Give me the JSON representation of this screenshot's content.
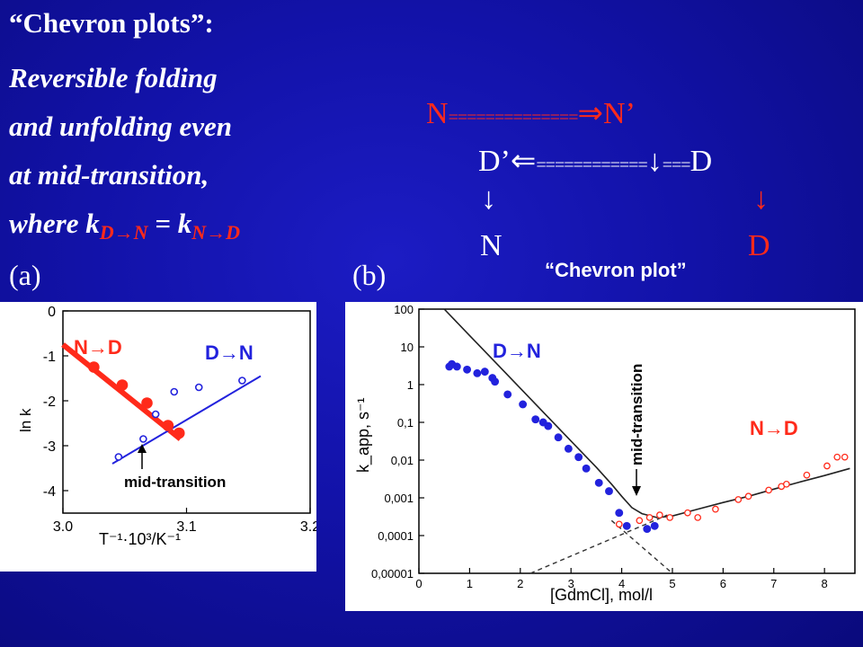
{
  "slide": {
    "title_lines": [
      "“Chevron plots”:",
      "Reversible folding",
      "and unfolding even",
      "at mid-transition,"
    ],
    "where": {
      "prefix": "where k",
      "sub1": "D",
      "arrow": "→",
      "sub1b": "N",
      "eq": " = k",
      "sub2": "N",
      "arrow2": "→",
      "sub2b": "D"
    },
    "scheme": {
      "row1_left": "N",
      "row1_bars": "==============",
      "row1_arrow": "⇒",
      "row1_right": "N’",
      "row2_left": "D’",
      "row2_arrow": "⇐",
      "row2_bars": "============",
      "row2_down": "↓",
      "row2_bars2": "===",
      "row2_right": "D",
      "down_left": "↓",
      "down_right": "↓",
      "bottom_left": "N",
      "bottom_right": "D"
    },
    "label_a": "(a)",
    "label_b": "(b)",
    "chevron_label": "“Chevron plot”"
  },
  "colors": {
    "bg": "#1212a8",
    "red": "#ff2a1a",
    "blue": "#2222dd"
  },
  "chart_data": [
    {
      "type": "scatter",
      "panel": "a",
      "xlabel": "T⁻¹·10³/K⁻¹",
      "ylabel": "ln k",
      "xlim": [
        3.0,
        3.2
      ],
      "ylim": [
        -4.5,
        0.0
      ],
      "xticks": [
        "3.0",
        "3.1",
        "3.2"
      ],
      "yticks": [
        "0",
        "-1",
        "-2",
        "-3",
        "-4"
      ],
      "series": [
        {
          "name": "N→D",
          "color": "#ff2a1a",
          "marker": "filled",
          "x": [
            3.025,
            3.048,
            3.068,
            3.085,
            3.094
          ],
          "y": [
            -1.25,
            -1.65,
            -2.05,
            -2.55,
            -2.72
          ],
          "fit": [
            [
              3.0,
              -0.75
            ],
            [
              3.095,
              -2.85
            ]
          ]
        },
        {
          "name": "D→N",
          "color": "#2222dd",
          "marker": "open",
          "x": [
            3.045,
            3.065,
            3.075,
            3.09,
            3.11,
            3.145
          ],
          "y": [
            -3.25,
            -2.85,
            -2.3,
            -1.8,
            -1.7,
            -1.55
          ],
          "fit": [
            [
              3.04,
              -3.4
            ],
            [
              3.16,
              -1.45
            ]
          ]
        }
      ],
      "annotations": [
        "mid-transition"
      ]
    },
    {
      "type": "scatter",
      "panel": "b",
      "xlabel": "[GdmCl], mol/l",
      "ylabel": "k_app, s⁻¹",
      "yscale": "log",
      "xlim": [
        0,
        8.6
      ],
      "ylim": [
        1e-05,
        100
      ],
      "xticks": [
        "0",
        "1",
        "2",
        "3",
        "4",
        "5",
        "6",
        "7",
        "8"
      ],
      "yticks": [
        "100",
        "10",
        "1",
        "0,1",
        "0,01",
        "0,001",
        "0,0001",
        "0,00001"
      ],
      "series": [
        {
          "name": "D→N",
          "color": "#2222dd",
          "marker": "filled",
          "x": [
            0.6,
            0.65,
            0.75,
            0.95,
            1.15,
            1.3,
            1.45,
            1.5,
            1.75,
            2.05,
            2.3,
            2.45,
            2.55,
            2.75,
            2.95,
            3.15,
            3.3,
            3.55,
            3.75,
            3.95,
            4.1,
            4.5,
            4.65
          ],
          "y": [
            3,
            3.5,
            3,
            2.5,
            2,
            2.2,
            1.5,
            1.2,
            0.55,
            0.3,
            0.12,
            0.1,
            0.08,
            0.04,
            0.02,
            0.012,
            0.006,
            0.0025,
            0.0015,
            0.0004,
            0.00018,
            0.00015,
            0.00018
          ]
        },
        {
          "name": "N→D",
          "color": "#ff2a1a",
          "marker": "open",
          "x": [
            3.95,
            4.35,
            4.55,
            4.75,
            4.95,
            5.3,
            5.5,
            5.85,
            6.3,
            6.5,
            6.9,
            7.15,
            7.25,
            7.65,
            8.05,
            8.25,
            8.4
          ],
          "y": [
            0.0002,
            0.00025,
            0.0003,
            0.00035,
            0.0003,
            0.0004,
            0.0003,
            0.0005,
            0.0009,
            0.0011,
            0.0016,
            0.002,
            0.0023,
            0.004,
            0.007,
            0.012,
            0.012
          ]
        }
      ],
      "fit_line": {
        "x": [
          0.5,
          1,
          1.5,
          2,
          2.5,
          3,
          3.5,
          3.8,
          4.0,
          4.2,
          4.4,
          4.7,
          5,
          5.5,
          6,
          6.5,
          7,
          7.5,
          8,
          8.5
        ],
        "y": [
          100,
          20,
          4,
          0.8,
          0.16,
          0.032,
          0.0064,
          0.0023,
          0.0011,
          0.00055,
          0.00038,
          0.0003,
          0.00033,
          0.0005,
          0.00075,
          0.0011,
          0.0017,
          0.0026,
          0.0039,
          0.006
        ]
      },
      "dashed_lines": [
        {
          "x": [
            2.2,
            4.9
          ],
          "y": [
            1e-05,
            0.00035
          ]
        },
        {
          "x": [
            3.8,
            5.0
          ],
          "y": [
            0.00025,
            1e-05
          ]
        }
      ],
      "annotations": [
        "mid-transition"
      ]
    }
  ]
}
